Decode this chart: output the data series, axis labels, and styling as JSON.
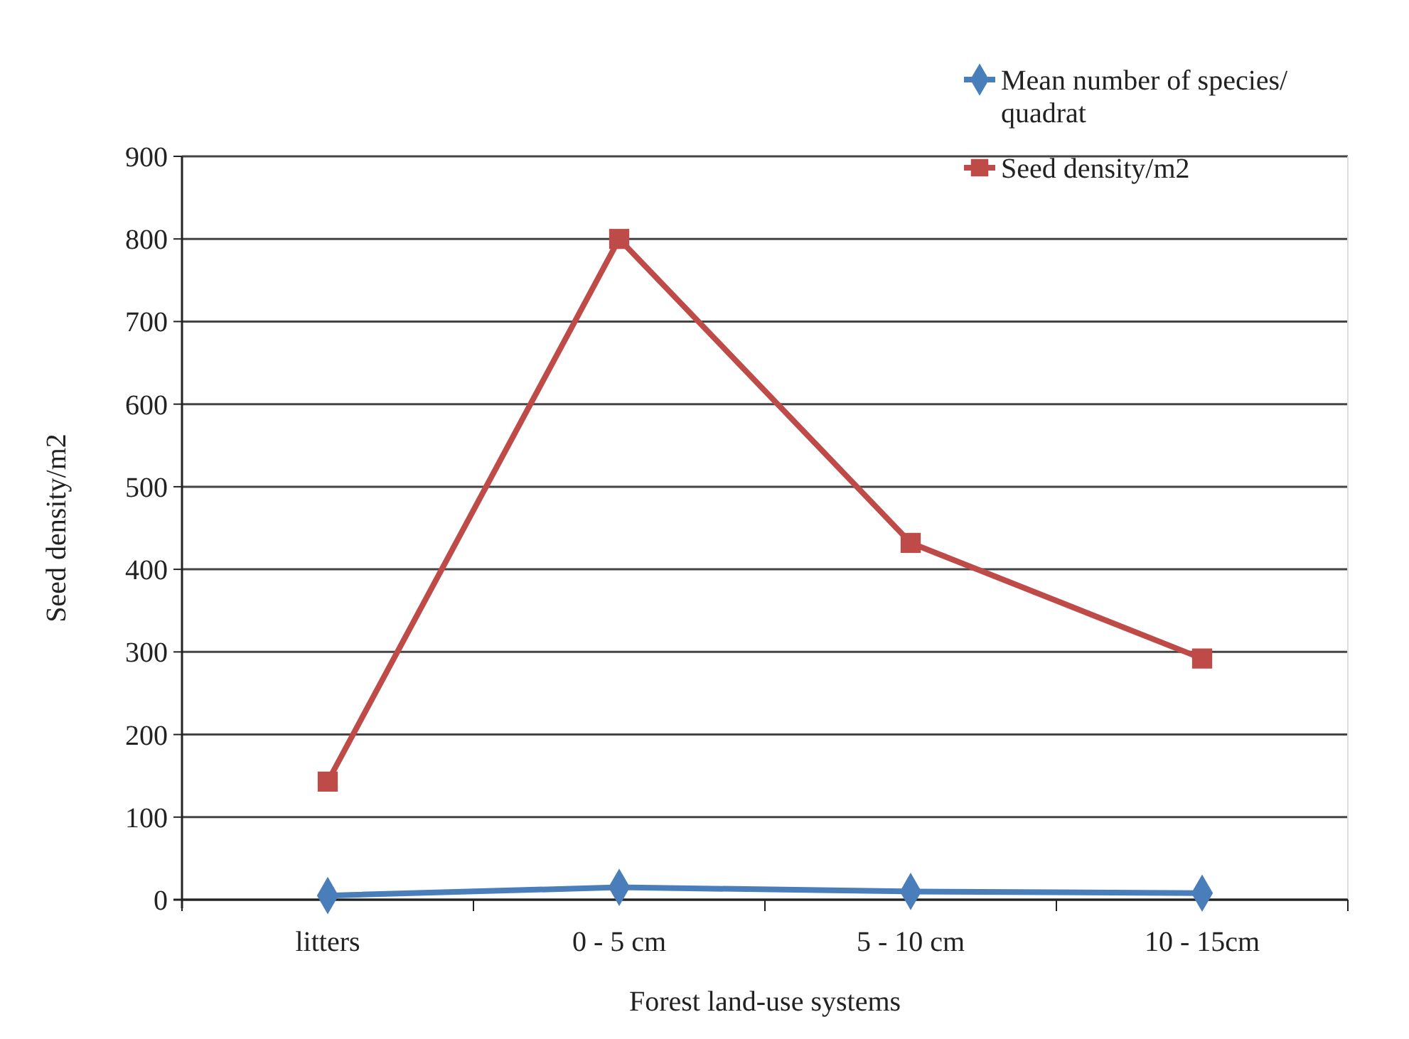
{
  "chart_data": {
    "type": "line",
    "xlabel": "Forest land-use systems",
    "ylabel": "Seed density/m2",
    "categories": [
      "litters",
      "0 - 5 cm",
      "5 - 10 cm",
      "10 - 15cm"
    ],
    "series": [
      {
        "name": "Mean number of species/ quadrat",
        "color": "#4a7ebb",
        "marker": "diamond",
        "values": [
          5,
          15,
          10,
          8
        ]
      },
      {
        "name": "Seed density/m2",
        "color": "#be4b48",
        "marker": "square",
        "values": [
          143,
          800,
          432,
          292
        ]
      }
    ],
    "ylim": [
      0,
      900
    ],
    "yticks": [
      0,
      100,
      200,
      300,
      400,
      500,
      600,
      700,
      800,
      900
    ],
    "grid": "y",
    "legend": "top right",
    "line_style": "solid"
  }
}
